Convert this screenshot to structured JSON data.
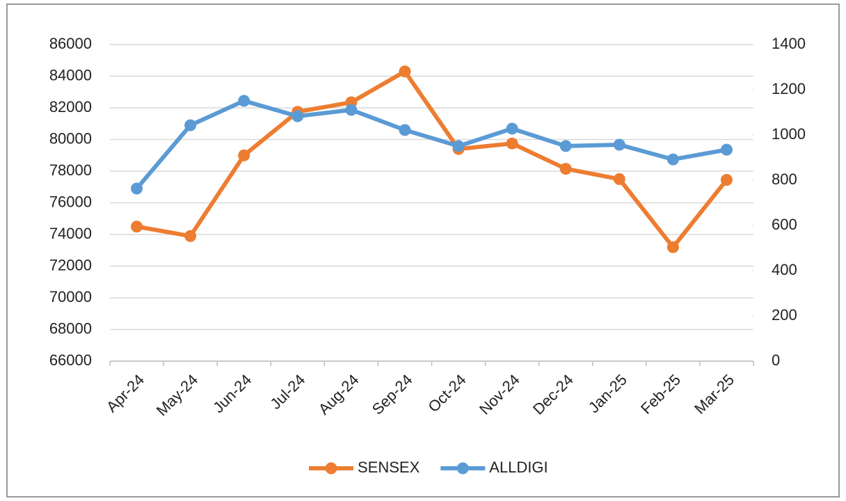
{
  "chart_data": {
    "type": "line",
    "categories": [
      "Apr-24",
      "May-24",
      "Jun-24",
      "Jul-24",
      "Aug-24",
      "Sep-24",
      "Oct-24",
      "Nov-24",
      "Dec-24",
      "Jan-25",
      "Feb-25",
      "Mar-25"
    ],
    "series": [
      {
        "name": "SENSEX",
        "color": "#ed7d31",
        "values": [
          74500,
          73900,
          79000,
          81750,
          82350,
          84300,
          79400,
          79750,
          78150,
          77500,
          73200,
          77450
        ]
      },
      {
        "name": "ALLDIGI",
        "color": "#5b9bd5",
        "axis": "y2",
        "values": [
          763,
          1043,
          1151,
          1083,
          1111,
          1022,
          951,
          1028,
          951,
          957,
          892,
          935
        ]
      }
    ],
    "ylim": [
      66000,
      86000
    ],
    "yticks": [
      66000,
      68000,
      70000,
      72000,
      74000,
      76000,
      78000,
      80000,
      82000,
      84000,
      86000
    ],
    "y2lim": [
      0,
      1400
    ],
    "y2ticks": [
      0,
      200,
      400,
      600,
      800,
      1000,
      1200,
      1400
    ],
    "grid": true,
    "legend": "bottom"
  }
}
